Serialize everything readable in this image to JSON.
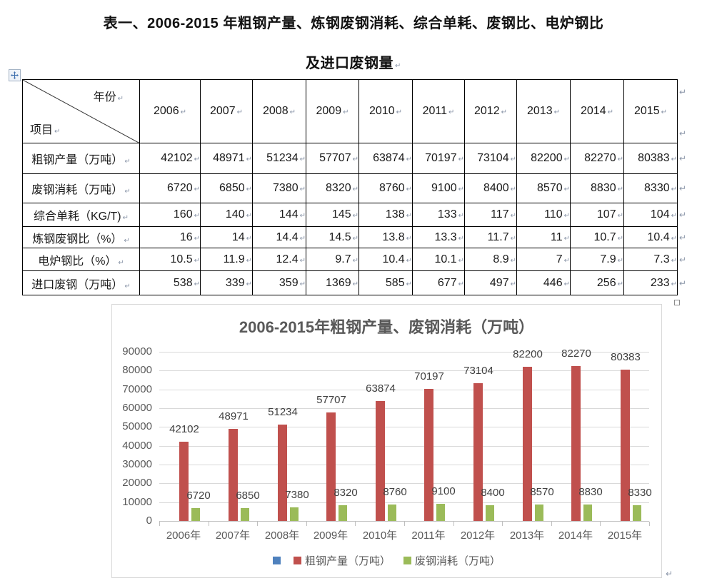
{
  "document": {
    "title_line1": "表一、2006-2015 年粗钢产量、炼钢废钢消耗、综合单耗、废钢比、电炉钢比",
    "title_line2": "及进口废钢量",
    "paragraph_mark": "↵"
  },
  "table": {
    "corner": {
      "top_right_label": "年份",
      "bottom_left_label": "项目"
    },
    "year_headers": [
      "2006",
      "2007",
      "2008",
      "2009",
      "2010",
      "2011",
      "2012",
      "2013",
      "2014",
      "2015"
    ],
    "rows": [
      {
        "label": "粗钢产量（万吨）",
        "values": [
          "42102",
          "48971",
          "51234",
          "57707",
          "63874",
          "70197",
          "73104",
          "82200",
          "82270",
          "80383"
        ]
      },
      {
        "label": "废钢消耗（万吨）",
        "values": [
          "6720",
          "6850",
          "7380",
          "8320",
          "8760",
          "9100",
          "8400",
          "8570",
          "8830",
          "8330"
        ]
      },
      {
        "label": "综合单耗（KG/T)",
        "values": [
          "160",
          "140",
          "144",
          "145",
          "138",
          "133",
          "117",
          "110",
          "107",
          "104"
        ]
      },
      {
        "label": "炼钢废钢比（%）",
        "values": [
          "16",
          "14",
          "14.4",
          "14.5",
          "13.8",
          "13.3",
          "11.7",
          "11",
          "10.7",
          "10.4"
        ]
      },
      {
        "label": "电炉钢比（%）",
        "values": [
          "10.5",
          "11.9",
          "12.4",
          "9.7",
          "10.4",
          "10.1",
          "8.9",
          "7",
          "7.9",
          "7.3"
        ]
      },
      {
        "label": "进口废钢（万吨）",
        "values": [
          "538",
          "339",
          "359",
          "1369",
          "585",
          "677",
          "497",
          "446",
          "256",
          "233"
        ]
      }
    ]
  },
  "chart_data": {
    "type": "bar",
    "title": "2006-2015年粗钢产量、废钢消耗（万吨）",
    "categories": [
      "2006年",
      "2007年",
      "2008年",
      "2009年",
      "2010年",
      "2011年",
      "2012年",
      "2013年",
      "2014年",
      "2015年"
    ],
    "series": [
      {
        "name": "",
        "color": "#4F81BD",
        "values": []
      },
      {
        "name": "粗钢产量（万吨）",
        "color": "#C0504D",
        "values": [
          42102,
          48971,
          51234,
          57707,
          63874,
          70197,
          73104,
          82200,
          82270,
          80383
        ]
      },
      {
        "name": "废钢消耗（万吨）",
        "color": "#9BBB59",
        "values": [
          6720,
          6850,
          7380,
          8320,
          8760,
          9100,
          8400,
          8570,
          8830,
          8330
        ]
      }
    ],
    "ylim": [
      0,
      90000
    ],
    "ytick_step": 10000,
    "grid": true,
    "legend_position": "bottom",
    "data_labels": true,
    "colors": {
      "grid": "#d9d9d9",
      "axis": "#bfbfbf",
      "text": "#595959"
    }
  }
}
